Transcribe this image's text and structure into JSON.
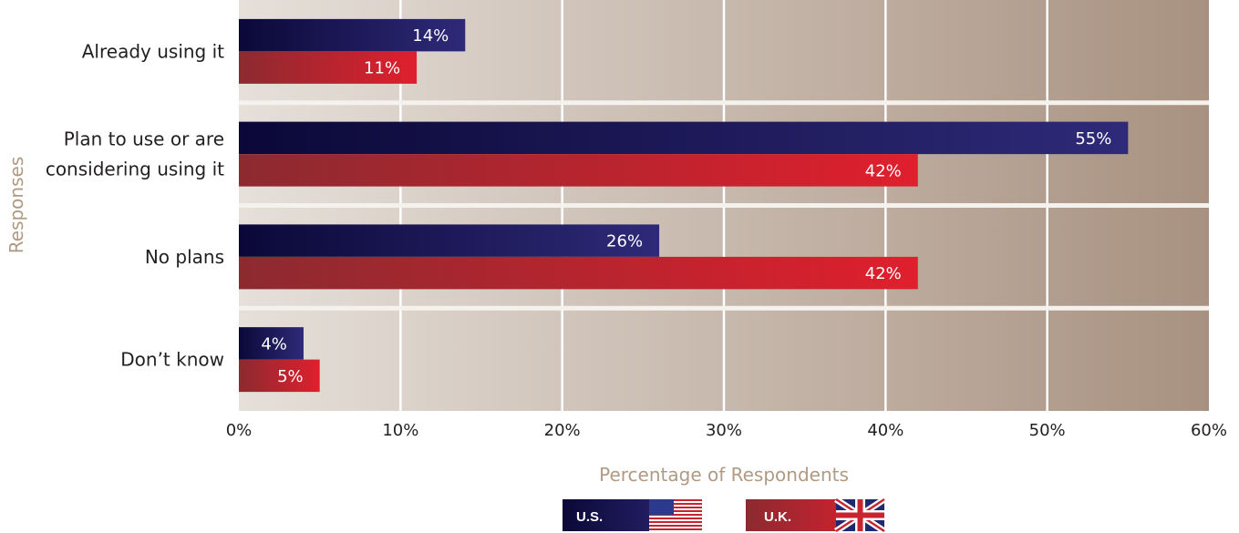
{
  "chart_data": {
    "type": "bar",
    "orientation": "horizontal",
    "categories": [
      "Already using it",
      "Plan to use or are considering using it",
      "No plans",
      "Don’t know"
    ],
    "category_lines": [
      [
        "Already using it"
      ],
      [
        "Plan to use or are",
        "considering using it"
      ],
      [
        "No plans"
      ],
      [
        "Don’t know"
      ]
    ],
    "series": [
      {
        "name": "U.S.",
        "values": [
          14,
          55,
          26,
          4
        ],
        "labels": [
          "14%",
          "55%",
          "26%",
          "4%"
        ],
        "color": "#2e2a78",
        "color_dark": "#0b0838"
      },
      {
        "name": "U.K.",
        "values": [
          11,
          42,
          42,
          5
        ],
        "labels": [
          "11%",
          "42%",
          "42%",
          "5%"
        ],
        "color": "#e01f2d",
        "color_dark": "#8c2a30"
      }
    ],
    "xlabel": "Percentage of Respondents",
    "ylabel": "Responses",
    "xlim": [
      0,
      60
    ],
    "x_ticks": [
      "0%",
      "10%",
      "20%",
      "30%",
      "40%",
      "50%",
      "60%"
    ],
    "grid": true,
    "legend_position": "bottom-center",
    "background_colors": [
      "#e6e0da",
      "#a89180"
    ]
  }
}
